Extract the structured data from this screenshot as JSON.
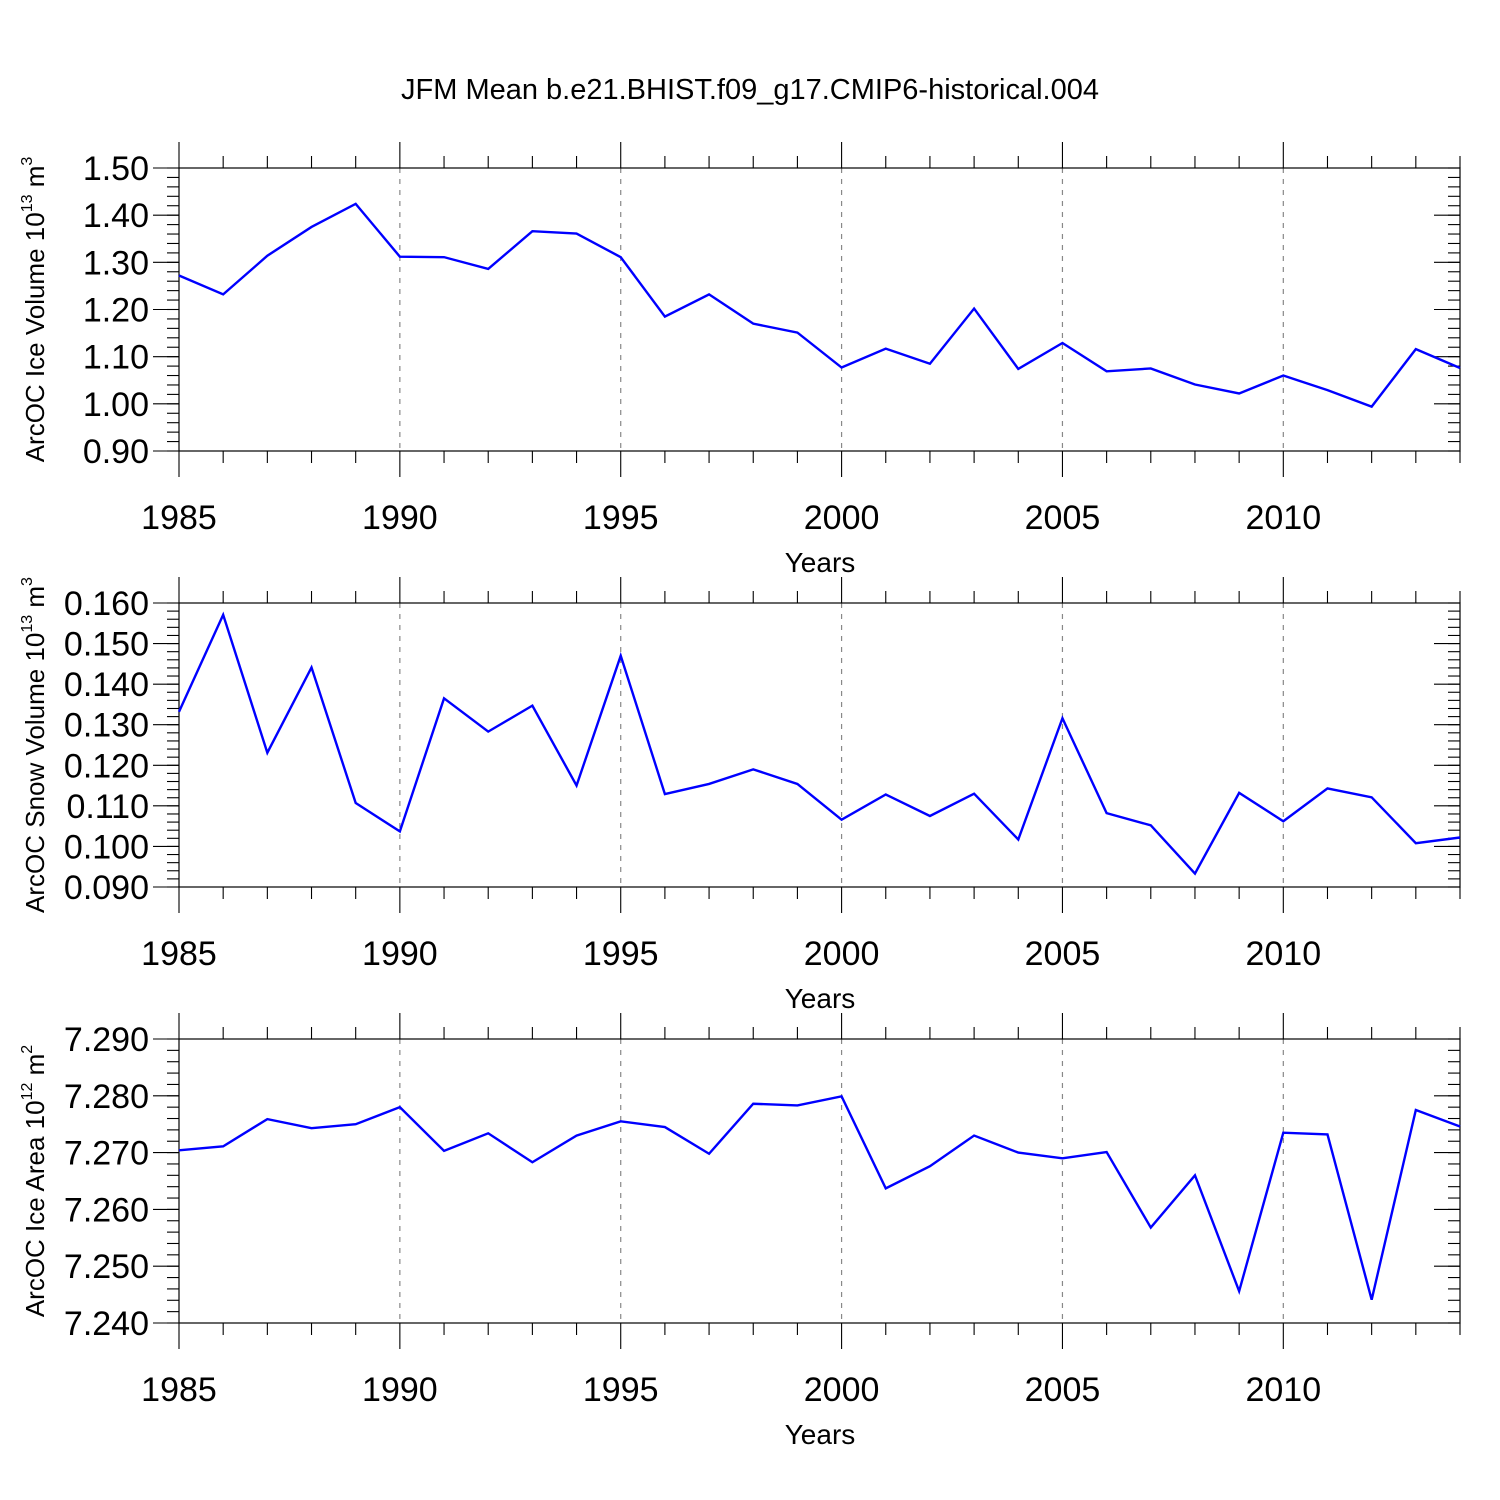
{
  "chart_data": [
    {
      "type": "line",
      "title": "JFM Mean b.e21.BHIST.f09_g17.CMIP6-historical.004",
      "ylabel": {
        "main": "ArcOC Ice Volume 10",
        "exp": "13",
        "unit": " m",
        "unit_exp": "3"
      },
      "xlabel": "Years",
      "xlim": [
        1985,
        2014
      ],
      "ylim": [
        0.9,
        1.5
      ],
      "grid": "dashed vertical at major x ticks",
      "x_ticks": [
        1985,
        1990,
        1995,
        2000,
        2005,
        2010
      ],
      "x_tick_labels": [
        "1985",
        "1990",
        "1995",
        "2000",
        "2005",
        "2010"
      ],
      "y_ticks": [
        0.9,
        1.0,
        1.1,
        1.2,
        1.3,
        1.4,
        1.5
      ],
      "y_tick_labels": [
        "0.90",
        "1.00",
        "1.10",
        "1.20",
        "1.30",
        "1.40",
        "1.50"
      ],
      "y_minor_step": 0.02,
      "x": [
        1985,
        1986,
        1987,
        1988,
        1989,
        1990,
        1991,
        1992,
        1993,
        1994,
        1995,
        1996,
        1997,
        1998,
        1999,
        2000,
        2001,
        2002,
        2003,
        2004,
        2005,
        2006,
        2007,
        2008,
        2009,
        2010,
        2011,
        2012,
        2013,
        2014
      ],
      "series": [
        {
          "name": "Ice Volume",
          "color": "#0000ff",
          "values": [
            1.272,
            1.232,
            1.314,
            1.375,
            1.424,
            1.312,
            1.311,
            1.286,
            1.366,
            1.361,
            1.311,
            1.185,
            1.232,
            1.17,
            1.151,
            1.077,
            1.117,
            1.085,
            1.202,
            1.074,
            1.129,
            1.069,
            1.075,
            1.041,
            1.022,
            1.06,
            1.029,
            0.994,
            1.116,
            1.076
          ]
        }
      ]
    },
    {
      "type": "line",
      "ylabel": {
        "main": "ArcOC Snow Volume 10",
        "exp": "13",
        "unit": " m",
        "unit_exp": "3"
      },
      "xlabel": "Years",
      "xlim": [
        1985,
        2014
      ],
      "ylim": [
        0.09,
        0.16
      ],
      "grid": "dashed vertical at major x ticks",
      "x_ticks": [
        1985,
        1990,
        1995,
        2000,
        2005,
        2010
      ],
      "x_tick_labels": [
        "1985",
        "1990",
        "1995",
        "2000",
        "2005",
        "2010"
      ],
      "y_ticks": [
        0.09,
        0.1,
        0.11,
        0.12,
        0.13,
        0.14,
        0.15,
        0.16
      ],
      "y_tick_labels": [
        "0.090",
        "0.100",
        "0.110",
        "0.120",
        "0.130",
        "0.140",
        "0.150",
        "0.160"
      ],
      "y_minor_step": 0.002,
      "x": [
        1985,
        1986,
        1987,
        1988,
        1989,
        1990,
        1991,
        1992,
        1993,
        1994,
        1995,
        1996,
        1997,
        1998,
        1999,
        2000,
        2001,
        2002,
        2003,
        2004,
        2005,
        2006,
        2007,
        2008,
        2009,
        2010,
        2011,
        2012,
        2013,
        2014
      ],
      "series": [
        {
          "name": "Snow Volume",
          "color": "#0000ff",
          "values": [
            0.1332,
            0.1571,
            0.1231,
            0.1441,
            0.1107,
            0.1037,
            0.1365,
            0.1283,
            0.1347,
            0.115,
            0.147,
            0.1129,
            0.1154,
            0.119,
            0.1154,
            0.1066,
            0.1128,
            0.1075,
            0.113,
            0.1017,
            0.1316,
            0.1082,
            0.1052,
            0.0933,
            0.1132,
            0.1062,
            0.1143,
            0.1121,
            0.1008,
            0.1022
          ]
        }
      ]
    },
    {
      "type": "line",
      "ylabel": {
        "main": "ArcOC Ice Area 10",
        "exp": "12",
        "unit": " m",
        "unit_exp": "2"
      },
      "xlabel": "Years",
      "xlim": [
        1985,
        2014
      ],
      "ylim": [
        7.24,
        7.29
      ],
      "grid": "dashed vertical at major x ticks",
      "x_ticks": [
        1985,
        1990,
        1995,
        2000,
        2005,
        2010
      ],
      "x_tick_labels": [
        "1985",
        "1990",
        "1995",
        "2000",
        "2005",
        "2010"
      ],
      "y_ticks": [
        7.24,
        7.25,
        7.26,
        7.27,
        7.28,
        7.29
      ],
      "y_tick_labels": [
        "7.240",
        "7.250",
        "7.260",
        "7.270",
        "7.280",
        "7.290"
      ],
      "y_minor_step": 0.002,
      "x": [
        1985,
        1986,
        1987,
        1988,
        1989,
        1990,
        1991,
        1992,
        1993,
        1994,
        1995,
        1996,
        1997,
        1998,
        1999,
        2000,
        2001,
        2002,
        2003,
        2004,
        2005,
        2006,
        2007,
        2008,
        2009,
        2010,
        2011,
        2012,
        2013,
        2014
      ],
      "series": [
        {
          "name": "Ice Area",
          "color": "#0000ff",
          "values": [
            7.2704,
            7.2711,
            7.2759,
            7.2743,
            7.275,
            7.278,
            7.2703,
            7.2734,
            7.2683,
            7.273,
            7.2755,
            7.2745,
            7.2698,
            7.2786,
            7.2783,
            7.2799,
            7.2637,
            7.2676,
            7.273,
            7.27,
            7.269,
            7.2701,
            7.2568,
            7.266,
            7.2456,
            7.2735,
            7.2732,
            7.2441,
            7.2775,
            7.2746
          ]
        }
      ]
    }
  ]
}
